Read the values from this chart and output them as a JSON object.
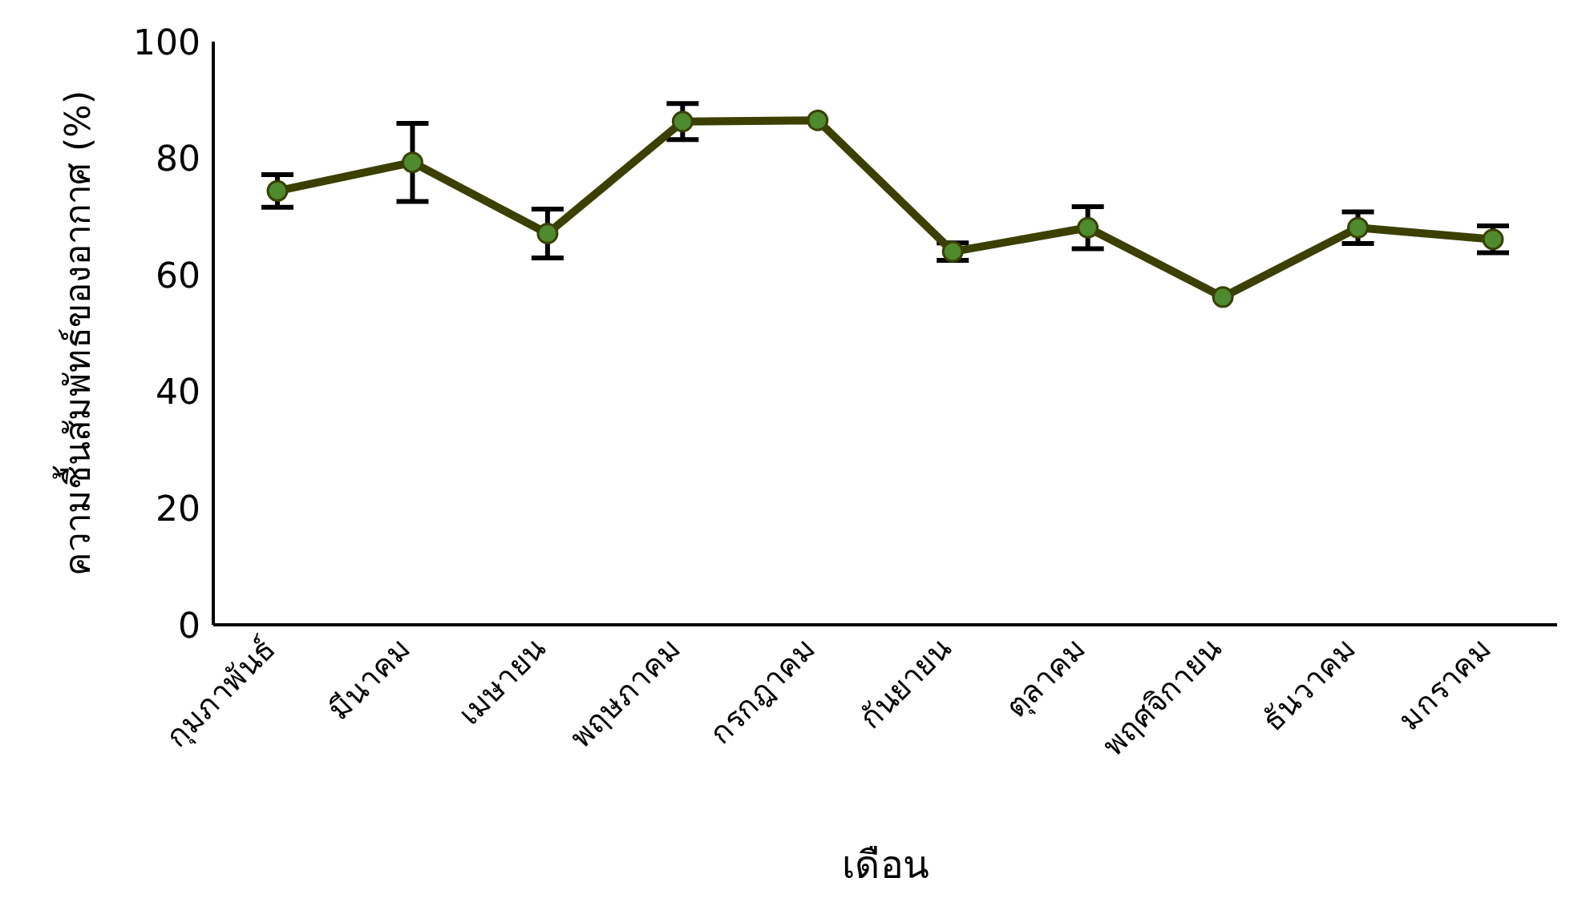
{
  "chart_data": {
    "type": "line",
    "xlabel": "เดือน",
    "ylabel": "ความชื้นสัมพัทธ์ของอากาศ (%)",
    "categories": [
      "กุมภาพันธ์",
      "มีนาคม",
      "เมษายน",
      "พฤษภาคม",
      "กรกฎาคม",
      "กันยายน",
      "ตุลาคม",
      "พฤศจิกายน",
      "ธันวาคม",
      "มกราคม"
    ],
    "series": [
      {
        "color": "#3b4000",
        "values": [
          74.4,
          79.3,
          67.1,
          86.3,
          86.5,
          64.0,
          68.1,
          56.2,
          68.1,
          66.1
        ],
        "errors": [
          2.8,
          6.7,
          4.2,
          3.1,
          null,
          1.5,
          3.6,
          null,
          2.7,
          2.3
        ]
      }
    ],
    "marker": "circle",
    "line_style": "solid",
    "ylim": [
      0,
      100
    ],
    "yticks": [
      0,
      20,
      40,
      60,
      80,
      100
    ],
    "grid": false,
    "legend": false
  }
}
